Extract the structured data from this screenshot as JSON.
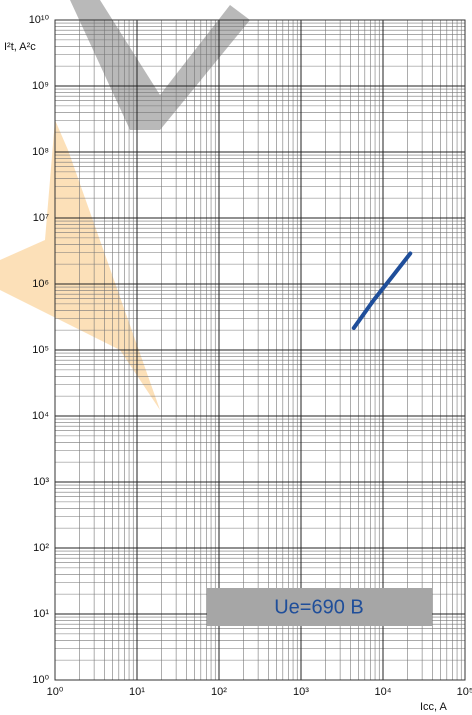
{
  "chart_data": {
    "type": "line",
    "y_label": "I²t, A²c",
    "x_label": "Icc, A",
    "annotation": "Ue=690 B",
    "xscale": "log",
    "yscale": "log",
    "grid": true,
    "minor_grid": true,
    "x": [
      4400,
      7700,
      13000,
      21500
    ],
    "series": [
      {
        "name": "Ue=690 B",
        "color": "#1f4e9a",
        "values": [
          215000,
          570000,
          1300000,
          2900000
        ]
      }
    ],
    "xlim": [
      1,
      100000
    ],
    "ylim": [
      1,
      10000000000
    ],
    "xticks": [
      {
        "value": 1,
        "label": "10⁰"
      },
      {
        "value": 10,
        "label": "10¹"
      },
      {
        "value": 100,
        "label": "10²"
      },
      {
        "value": 1000,
        "label": "10³"
      },
      {
        "value": 10000,
        "label": "10⁴"
      },
      {
        "value": 100000,
        "label": "10⁵"
      }
    ],
    "yticks": [
      {
        "value": 1,
        "label": "10⁰"
      },
      {
        "value": 10,
        "label": "10¹"
      },
      {
        "value": 100,
        "label": "10²"
      },
      {
        "value": 1000,
        "label": "10³"
      },
      {
        "value": 10000,
        "label": "10⁴"
      },
      {
        "value": 100000,
        "label": "10⁵"
      },
      {
        "value": 1000000,
        "label": "10⁶"
      },
      {
        "value": 10000000,
        "label": "10⁷"
      },
      {
        "value": 100000000,
        "label": "10⁸"
      },
      {
        "value": 1000000000,
        "label": "10⁹"
      },
      {
        "value": 10000000000,
        "label": "10¹⁰"
      }
    ]
  }
}
